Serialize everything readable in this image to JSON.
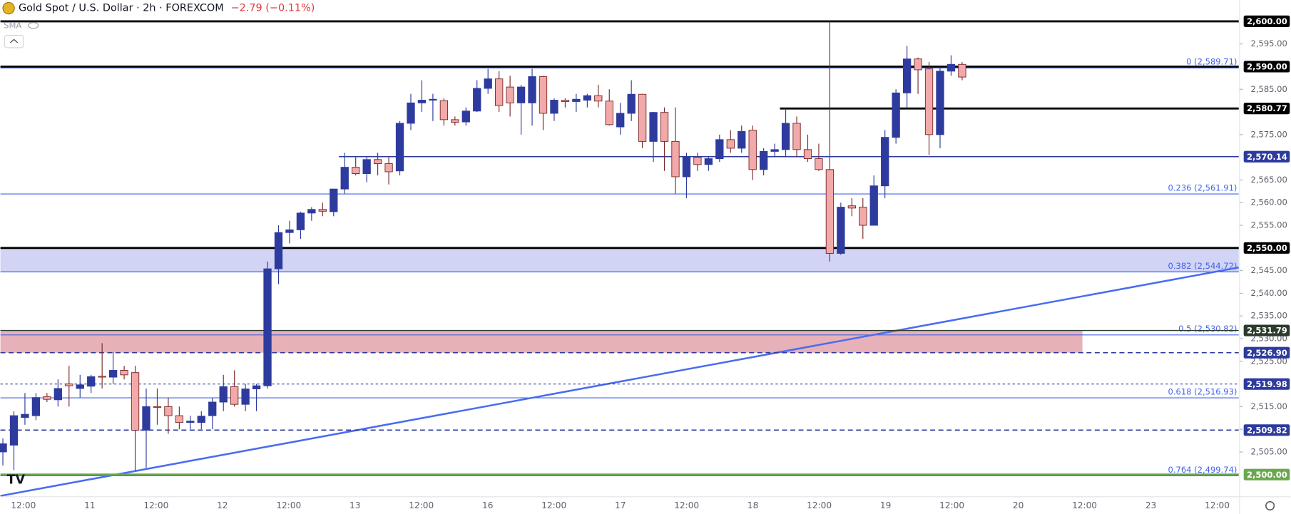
{
  "header": {
    "symbol": "Gold Spot / U.S. Dollar · 2h · FOREXCOM",
    "change": "−2.79 (−0.11%)",
    "indicator": "SMA"
  },
  "chart_data": {
    "type": "candlestick",
    "open": [
      2505,
      2506.5,
      2512.6,
      2513,
      2517.2,
      2516.5,
      2520,
      2519,
      2519.5,
      2521.7,
      2521.5,
      2523,
      2522.5,
      2509.8,
      2515,
      2515,
      2513,
      2511.5,
      2511.5,
      2513,
      2516,
      2519.4,
      2515.5,
      2518.9,
      2519.6,
      2545.4,
      2553.4,
      2554,
      2557.7,
      2558.5,
      2558,
      2563,
      2567.8,
      2566.4,
      2569.5,
      2568.6,
      2567,
      2577.5,
      2582,
      2582.6,
      2582.5,
      2578.3,
      2577.8,
      2580.2,
      2585.2,
      2587.3,
      2585.5,
      2582,
      2582,
      2587.8,
      2579.7,
      2582.6,
      2582.3,
      2582.6,
      2583.6,
      2582.4,
      2576.7,
      2579.7,
      2583.9,
      2573.5,
      2579.9,
      2573.5,
      2565.7,
      2570,
      2568.4,
      2569.7,
      2573.9,
      2572,
      2576,
      2567.3,
      2571.3,
      2571.7,
      2577.5,
      2571.7,
      2569.7,
      2567.3,
      2548.8,
      2559.3,
      2559,
      2555,
      2563.7,
      2574.4,
      2584.2,
      2591.7,
      2589.5,
      2575,
      2589,
      2590.5
    ],
    "high": [
      2508,
      2514,
      2518,
      2518,
      2518,
      2521,
      2524,
      2522,
      2522,
      2529,
      2527,
      2524,
      2524,
      2519,
      2519,
      2517,
      2515,
      2513,
      2514,
      2517,
      2522,
      2523,
      2520,
      2520,
      2547,
      2555,
      2556,
      2558,
      2559,
      2560,
      2563,
      2571,
      2570,
      2570,
      2571,
      2570,
      2578,
      2584,
      2587,
      2584,
      2583,
      2579,
      2581,
      2587,
      2589.5,
      2589,
      2588,
      2586,
      2589.5,
      2588,
      2583,
      2583,
      2584,
      2584,
      2586,
      2585,
      2582,
      2587,
      2584,
      2580,
      2581,
      2581,
      2571,
      2571,
      2570,
      2575,
      2576,
      2577,
      2577,
      2572,
      2573,
      2580.8,
      2579,
      2575,
      2573,
      2600,
      2560,
      2561,
      2561,
      2566,
      2576,
      2585,
      2594.6,
      2592,
      2591,
      2590,
      2592.5,
      2591
    ],
    "low": [
      2502,
      2501,
      2511,
      2512,
      2516,
      2515,
      2515,
      2517,
      2518,
      2519,
      2520,
      2521,
      2500.8,
      2501.5,
      2511,
      2509,
      2510,
      2510,
      2510,
      2510,
      2514,
      2515,
      2514,
      2514,
      2519,
      2542,
      2551,
      2552,
      2556,
      2557,
      2557,
      2562,
      2566,
      2564.5,
      2566,
      2564,
      2566,
      2576,
      2580,
      2578,
      2577,
      2577,
      2577,
      2580,
      2584,
      2580,
      2579,
      2575,
      2577,
      2576,
      2578,
      2581,
      2580,
      2581,
      2581,
      2577,
      2575,
      2578,
      2572,
      2569,
      2567,
      2562,
      2561,
      2567,
      2567,
      2569,
      2571,
      2571,
      2565,
      2566,
      2570,
      2570,
      2570,
      2569,
      2567,
      2547,
      2548.5,
      2557,
      2552,
      2555,
      2561,
      2573,
      2581,
      2584,
      2570.5,
      2572,
      2588,
      2587
    ],
    "close": [
      2506.8,
      2513,
      2513.3,
      2517,
      2516.6,
      2519,
      2519.6,
      2519.8,
      2521.6,
      2521.5,
      2523,
      2522,
      2509.8,
      2515,
      2514.8,
      2513,
      2511.5,
      2511.8,
      2512.9,
      2516,
      2519.4,
      2515.5,
      2518.9,
      2519.6,
      2545.4,
      2553.4,
      2554,
      2557.7,
      2558.5,
      2558.1,
      2563,
      2567.8,
      2566.4,
      2569.5,
      2568.6,
      2566.8,
      2577.5,
      2582,
      2582.6,
      2582.8,
      2578.3,
      2577.7,
      2580.2,
      2585.2,
      2587.3,
      2581.4,
      2582,
      2585.5,
      2587.8,
      2579.7,
      2582.6,
      2582.3,
      2582.8,
      2583.6,
      2582.4,
      2577.2,
      2579.7,
      2583.9,
      2573.5,
      2579.9,
      2573.5,
      2565.7,
      2570,
      2568.4,
      2569.7,
      2573.9,
      2572,
      2575.7,
      2567.3,
      2571.3,
      2571.7,
      2577.5,
      2571.7,
      2569.7,
      2567.3,
      2548.8,
      2559,
      2558.8,
      2555,
      2563.7,
      2574.4,
      2584.2,
      2591.7,
      2589.3,
      2575,
      2589,
      2590.5,
      2587.7
    ],
    "up_color": "#2e3b9e",
    "down_color": "#f2a9a9",
    "down_border": "#7a2a2a",
    "ylim": [
      2495.3,
      2604.7
    ],
    "yticks": [
      {
        "value": 2505,
        "label": "2,505.00"
      },
      {
        "value": 2510,
        "label": "2,510.00"
      },
      {
        "value": 2515,
        "label": "2,515.00"
      },
      {
        "value": 2525,
        "label": "2,525.00"
      },
      {
        "value": 2530,
        "label": "2,530.00"
      },
      {
        "value": 2535,
        "label": "2,535.00"
      },
      {
        "value": 2540,
        "label": "2,540.00"
      },
      {
        "value": 2545,
        "label": "2,545.00"
      },
      {
        "value": 2555,
        "label": "2,555.00"
      },
      {
        "value": 2560,
        "label": "2,560.00"
      },
      {
        "value": 2565,
        "label": "2,565.00"
      },
      {
        "value": 2575,
        "label": "2,575.00"
      },
      {
        "value": 2585,
        "label": "2,585.00"
      },
      {
        "value": 2595,
        "label": "2,595.00"
      }
    ],
    "x_labels": [
      "12:00",
      "11",
      "12:00",
      "12",
      "12:00",
      "13",
      "12:00",
      "16",
      "12:00",
      "17",
      "12:00",
      "18",
      "12:00",
      "19",
      "12:00",
      "20",
      "12:00",
      "23",
      "12:00"
    ],
    "levels": [
      {
        "value": 2600,
        "label": "2,600.00",
        "color": "#000000",
        "style": "bold"
      },
      {
        "value": 2590,
        "label": "2,590.00",
        "color": "#000000",
        "style": "bold"
      },
      {
        "value": 2580.77,
        "label": "2,580.77",
        "color": "#000000",
        "style": "bold"
      },
      {
        "value": 2570.14,
        "label": "2,570.14",
        "color": "#2d3a9e",
        "style": "thin"
      },
      {
        "value": 2550,
        "label": "2,550.00",
        "color": "#000000",
        "style": "bold"
      },
      {
        "value": 2531.79,
        "label": "2,531.79",
        "color": "#2b3a2b",
        "style": "thin"
      },
      {
        "value": 2526.9,
        "label": "2,526.90",
        "color": "#2d3a9e",
        "style": "dashed"
      },
      {
        "value": 2519.98,
        "label": "2,519.98",
        "color": "#2d3a9e",
        "style": "dotted"
      },
      {
        "value": 2509.82,
        "label": "2,509.82",
        "color": "#2d3a9e",
        "style": "dashed"
      },
      {
        "value": 2500,
        "label": "2,500.00",
        "color": "#6aa84f",
        "style": "bold"
      }
    ],
    "fib_color": "#4263eb",
    "fib_levels": [
      {
        "value": 2589.71,
        "label": "0 (2,589.71)"
      },
      {
        "value": 2561.91,
        "label": "0.236 (2,561.91)"
      },
      {
        "value": 2544.72,
        "label": "0.382 (2,544.72)"
      },
      {
        "value": 2530.82,
        "label": "0.5 (2,530.82)"
      },
      {
        "value": 2516.93,
        "label": "0.618 (2,516.93)"
      },
      {
        "value": 2499.74,
        "label": "0.764 (2,499.74)"
      }
    ],
    "zones": [
      {
        "from": 2544.72,
        "to": 2550,
        "color": "#c9cdf3"
      },
      {
        "from": 2526.9,
        "to": 2531.79,
        "color": "#e3a3ad"
      }
    ],
    "trendline": {
      "start": 2495.3,
      "end": 2545.7,
      "color": "#4a6cf0"
    }
  }
}
